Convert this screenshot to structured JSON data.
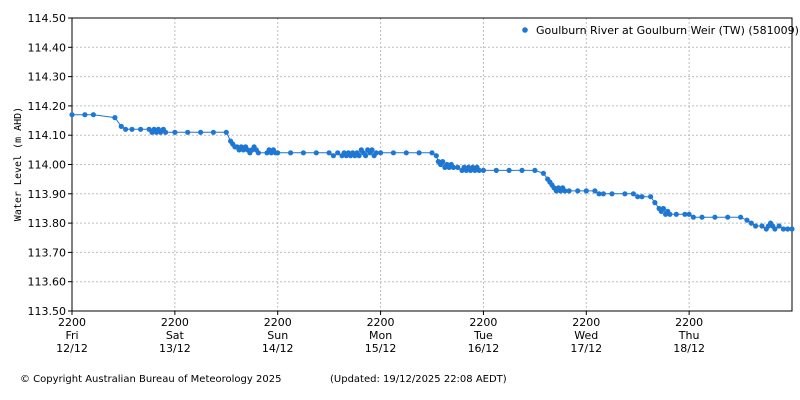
{
  "chart_data": {
    "type": "line",
    "title": "",
    "ylabel": "Water Level (m AHD)",
    "xlabel": "",
    "ylim": [
      113.5,
      114.5
    ],
    "y_ticks": [
      "113.50",
      "113.60",
      "113.70",
      "113.80",
      "113.90",
      "114.00",
      "114.10",
      "114.20",
      "114.30",
      "114.40",
      "114.50"
    ],
    "x_range": [
      "2025-12-12 22:00",
      "2025-12-19 22:00"
    ],
    "x_ticks": [
      {
        "time": "2200",
        "day": "Fri",
        "date": "12/12"
      },
      {
        "time": "2200",
        "day": "Sat",
        "date": "13/12"
      },
      {
        "time": "2200",
        "day": "Sun",
        "date": "14/12"
      },
      {
        "time": "2200",
        "day": "Mon",
        "date": "15/12"
      },
      {
        "time": "2200",
        "day": "Tue",
        "date": "16/12"
      },
      {
        "time": "2200",
        "day": "Wed",
        "date": "17/12"
      },
      {
        "time": "2200",
        "day": "Thu",
        "date": "18/12"
      }
    ],
    "grid": true,
    "legend_position": "top-right",
    "series": [
      {
        "name": "Goulburn River at Goulburn Weir (TW) (581009)",
        "color": "#1f77d4",
        "points": [
          {
            "x": "2025-12-12 22:00",
            "y": 114.17
          },
          {
            "x": "2025-12-13 01:00",
            "y": 114.17
          },
          {
            "x": "2025-12-13 03:00",
            "y": 114.17
          },
          {
            "x": "2025-12-13 08:00",
            "y": 114.16
          },
          {
            "x": "2025-12-13 09:30",
            "y": 114.13
          },
          {
            "x": "2025-12-13 10:30",
            "y": 114.12
          },
          {
            "x": "2025-12-13 12:00",
            "y": 114.12
          },
          {
            "x": "2025-12-13 14:00",
            "y": 114.12
          },
          {
            "x": "2025-12-13 16:00",
            "y": 114.12
          },
          {
            "x": "2025-12-13 16:40",
            "y": 114.11
          },
          {
            "x": "2025-12-13 17:10",
            "y": 114.12
          },
          {
            "x": "2025-12-13 17:40",
            "y": 114.11
          },
          {
            "x": "2025-12-13 18:10",
            "y": 114.12
          },
          {
            "x": "2025-12-13 18:40",
            "y": 114.11
          },
          {
            "x": "2025-12-13 19:20",
            "y": 114.12
          },
          {
            "x": "2025-12-13 19:50",
            "y": 114.11
          },
          {
            "x": "2025-12-13 22:00",
            "y": 114.11
          },
          {
            "x": "2025-12-14 01:00",
            "y": 114.11
          },
          {
            "x": "2025-12-14 04:00",
            "y": 114.11
          },
          {
            "x": "2025-12-14 07:00",
            "y": 114.11
          },
          {
            "x": "2025-12-14 10:00",
            "y": 114.11
          },
          {
            "x": "2025-12-14 11:00",
            "y": 114.08
          },
          {
            "x": "2025-12-14 11:30",
            "y": 114.07
          },
          {
            "x": "2025-12-14 12:00",
            "y": 114.06
          },
          {
            "x": "2025-12-14 12:30",
            "y": 114.06
          },
          {
            "x": "2025-12-14 13:00",
            "y": 114.05
          },
          {
            "x": "2025-12-14 13:30",
            "y": 114.06
          },
          {
            "x": "2025-12-14 14:00",
            "y": 114.05
          },
          {
            "x": "2025-12-14 14:30",
            "y": 114.06
          },
          {
            "x": "2025-12-14 15:00",
            "y": 114.05
          },
          {
            "x": "2025-12-14 15:30",
            "y": 114.04
          },
          {
            "x": "2025-12-14 16:00",
            "y": 114.05
          },
          {
            "x": "2025-12-14 16:30",
            "y": 114.06
          },
          {
            "x": "2025-12-14 17:00",
            "y": 114.05
          },
          {
            "x": "2025-12-14 17:30",
            "y": 114.04
          },
          {
            "x": "2025-12-14 19:30",
            "y": 114.04
          },
          {
            "x": "2025-12-14 20:00",
            "y": 114.05
          },
          {
            "x": "2025-12-14 20:30",
            "y": 114.04
          },
          {
            "x": "2025-12-14 21:00",
            "y": 114.05
          },
          {
            "x": "2025-12-14 21:30",
            "y": 114.04
          },
          {
            "x": "2025-12-14 22:00",
            "y": 114.04
          },
          {
            "x": "2025-12-15 01:00",
            "y": 114.04
          },
          {
            "x": "2025-12-15 04:00",
            "y": 114.04
          },
          {
            "x": "2025-12-15 07:00",
            "y": 114.04
          },
          {
            "x": "2025-12-15 10:00",
            "y": 114.04
          },
          {
            "x": "2025-12-15 11:00",
            "y": 114.03
          },
          {
            "x": "2025-12-15 12:00",
            "y": 114.04
          },
          {
            "x": "2025-12-15 13:00",
            "y": 114.03
          },
          {
            "x": "2025-12-15 13:30",
            "y": 114.04
          },
          {
            "x": "2025-12-15 14:00",
            "y": 114.03
          },
          {
            "x": "2025-12-15 14:30",
            "y": 114.04
          },
          {
            "x": "2025-12-15 15:00",
            "y": 114.03
          },
          {
            "x": "2025-12-15 15:30",
            "y": 114.04
          },
          {
            "x": "2025-12-15 16:00",
            "y": 114.03
          },
          {
            "x": "2025-12-15 16:30",
            "y": 114.04
          },
          {
            "x": "2025-12-15 17:00",
            "y": 114.03
          },
          {
            "x": "2025-12-15 17:30",
            "y": 114.05
          },
          {
            "x": "2025-12-15 18:00",
            "y": 114.04
          },
          {
            "x": "2025-12-15 18:30",
            "y": 114.03
          },
          {
            "x": "2025-12-15 19:00",
            "y": 114.05
          },
          {
            "x": "2025-12-15 19:30",
            "y": 114.04
          },
          {
            "x": "2025-12-15 20:00",
            "y": 114.05
          },
          {
            "x": "2025-12-15 20:30",
            "y": 114.03
          },
          {
            "x": "2025-12-15 21:00",
            "y": 114.04
          },
          {
            "x": "2025-12-15 22:00",
            "y": 114.04
          },
          {
            "x": "2025-12-16 01:00",
            "y": 114.04
          },
          {
            "x": "2025-12-16 04:00",
            "y": 114.04
          },
          {
            "x": "2025-12-16 07:00",
            "y": 114.04
          },
          {
            "x": "2025-12-16 10:00",
            "y": 114.04
          },
          {
            "x": "2025-12-16 11:00",
            "y": 114.03
          },
          {
            "x": "2025-12-16 11:30",
            "y": 114.01
          },
          {
            "x": "2025-12-16 12:00",
            "y": 114.0
          },
          {
            "x": "2025-12-16 12:30",
            "y": 114.01
          },
          {
            "x": "2025-12-16 13:00",
            "y": 113.99
          },
          {
            "x": "2025-12-16 13:30",
            "y": 114.0
          },
          {
            "x": "2025-12-16 14:00",
            "y": 113.99
          },
          {
            "x": "2025-12-16 14:30",
            "y": 114.0
          },
          {
            "x": "2025-12-16 15:00",
            "y": 113.99
          },
          {
            "x": "2025-12-16 16:00",
            "y": 113.99
          },
          {
            "x": "2025-12-16 17:00",
            "y": 113.98
          },
          {
            "x": "2025-12-16 17:30",
            "y": 113.99
          },
          {
            "x": "2025-12-16 18:00",
            "y": 113.98
          },
          {
            "x": "2025-12-16 18:30",
            "y": 113.99
          },
          {
            "x": "2025-12-16 19:00",
            "y": 113.98
          },
          {
            "x": "2025-12-16 19:30",
            "y": 113.99
          },
          {
            "x": "2025-12-16 20:00",
            "y": 113.98
          },
          {
            "x": "2025-12-16 20:30",
            "y": 113.99
          },
          {
            "x": "2025-12-16 21:00",
            "y": 113.98
          },
          {
            "x": "2025-12-16 22:00",
            "y": 113.98
          },
          {
            "x": "2025-12-17 01:00",
            "y": 113.98
          },
          {
            "x": "2025-12-17 04:00",
            "y": 113.98
          },
          {
            "x": "2025-12-17 07:00",
            "y": 113.98
          },
          {
            "x": "2025-12-17 10:00",
            "y": 113.98
          },
          {
            "x": "2025-12-17 12:00",
            "y": 113.97
          },
          {
            "x": "2025-12-17 13:00",
            "y": 113.95
          },
          {
            "x": "2025-12-17 13:30",
            "y": 113.94
          },
          {
            "x": "2025-12-17 14:00",
            "y": 113.93
          },
          {
            "x": "2025-12-17 14:30",
            "y": 113.92
          },
          {
            "x": "2025-12-17 15:00",
            "y": 113.91
          },
          {
            "x": "2025-12-17 15:30",
            "y": 113.92
          },
          {
            "x": "2025-12-17 16:00",
            "y": 113.91
          },
          {
            "x": "2025-12-17 16:30",
            "y": 113.92
          },
          {
            "x": "2025-12-17 17:00",
            "y": 113.91
          },
          {
            "x": "2025-12-17 18:00",
            "y": 113.91
          },
          {
            "x": "2025-12-17 20:00",
            "y": 113.91
          },
          {
            "x": "2025-12-17 22:00",
            "y": 113.91
          },
          {
            "x": "2025-12-18 00:00",
            "y": 113.91
          },
          {
            "x": "2025-12-18 01:00",
            "y": 113.9
          },
          {
            "x": "2025-12-18 02:00",
            "y": 113.9
          },
          {
            "x": "2025-12-18 04:00",
            "y": 113.9
          },
          {
            "x": "2025-12-18 07:00",
            "y": 113.9
          },
          {
            "x": "2025-12-18 09:00",
            "y": 113.9
          },
          {
            "x": "2025-12-18 10:00",
            "y": 113.89
          },
          {
            "x": "2025-12-18 11:00",
            "y": 113.89
          },
          {
            "x": "2025-12-18 13:00",
            "y": 113.89
          },
          {
            "x": "2025-12-18 14:00",
            "y": 113.87
          },
          {
            "x": "2025-12-18 15:00",
            "y": 113.85
          },
          {
            "x": "2025-12-18 15:30",
            "y": 113.84
          },
          {
            "x": "2025-12-18 16:00",
            "y": 113.85
          },
          {
            "x": "2025-12-18 16:30",
            "y": 113.83
          },
          {
            "x": "2025-12-18 17:00",
            "y": 113.84
          },
          {
            "x": "2025-12-18 17:30",
            "y": 113.83
          },
          {
            "x": "2025-12-18 19:00",
            "y": 113.83
          },
          {
            "x": "2025-12-18 21:00",
            "y": 113.83
          },
          {
            "x": "2025-12-18 22:00",
            "y": 113.83
          },
          {
            "x": "2025-12-18 23:00",
            "y": 113.82
          },
          {
            "x": "2025-12-19 01:00",
            "y": 113.82
          },
          {
            "x": "2025-12-19 04:00",
            "y": 113.82
          },
          {
            "x": "2025-12-19 07:00",
            "y": 113.82
          },
          {
            "x": "2025-12-19 10:00",
            "y": 113.82
          },
          {
            "x": "2025-12-19 11:30",
            "y": 113.81
          },
          {
            "x": "2025-12-19 12:30",
            "y": 113.8
          },
          {
            "x": "2025-12-19 13:30",
            "y": 113.79
          },
          {
            "x": "2025-12-19 15:00",
            "y": 113.79
          },
          {
            "x": "2025-12-19 16:00",
            "y": 113.78
          },
          {
            "x": "2025-12-19 16:30",
            "y": 113.79
          },
          {
            "x": "2025-12-19 17:00",
            "y": 113.8
          },
          {
            "x": "2025-12-19 17:30",
            "y": 113.79
          },
          {
            "x": "2025-12-19 18:00",
            "y": 113.78
          },
          {
            "x": "2025-12-19 19:00",
            "y": 113.79
          },
          {
            "x": "2025-12-19 20:00",
            "y": 113.78
          },
          {
            "x": "2025-12-19 21:00",
            "y": 113.78
          },
          {
            "x": "2025-12-19 22:00",
            "y": 113.78
          }
        ]
      }
    ]
  },
  "footer": {
    "copyright": "© Copyright Australian Bureau of Meteorology 2025",
    "updated": "(Updated: 19/12/2025 22:08 AEDT)"
  }
}
